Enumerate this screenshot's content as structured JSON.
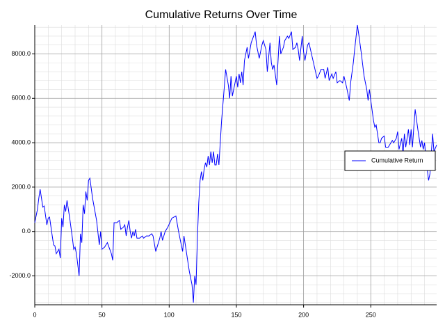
{
  "chart_data": {
    "type": "line",
    "title": "Cumulative Returns Over Time",
    "x": [
      0,
      2,
      3,
      4,
      6,
      7,
      9,
      10,
      11,
      13,
      14,
      15,
      16,
      18,
      19,
      20,
      21,
      22,
      23,
      24,
      26,
      28,
      29,
      30,
      31,
      33,
      34,
      35,
      36,
      37,
      38,
      39,
      40,
      41,
      43,
      46,
      48,
      49,
      50,
      52,
      54,
      57,
      58,
      59,
      61,
      63,
      64,
      66,
      67,
      68,
      69,
      70,
      71,
      72,
      73,
      74,
      75,
      76,
      78,
      80,
      81,
      83,
      85,
      87,
      88,
      90,
      92,
      93,
      94,
      95,
      96,
      97,
      99,
      102,
      105,
      107,
      109,
      110,
      111,
      113,
      115,
      117,
      118,
      119,
      120,
      121,
      122,
      123,
      124,
      125,
      126,
      127,
      128,
      129,
      130,
      131,
      132,
      133,
      134,
      135,
      136,
      137,
      139,
      141,
      142,
      144,
      145,
      146,
      147,
      149,
      150,
      151,
      152,
      153,
      154,
      155,
      156,
      158,
      159,
      161,
      164,
      165,
      167,
      169,
      170,
      172,
      173,
      175,
      176,
      177,
      178,
      180,
      182,
      183,
      185,
      186,
      188,
      189,
      191,
      192,
      194,
      195,
      196,
      197,
      199,
      200,
      201,
      203,
      204,
      207,
      210,
      211,
      213,
      215,
      216,
      218,
      219,
      221,
      222,
      224,
      225,
      227,
      229,
      230,
      232,
      234,
      235,
      237,
      238,
      240,
      241,
      243,
      245,
      247,
      248,
      249,
      250,
      252,
      253,
      254,
      256,
      257,
      258,
      260,
      261,
      263,
      264,
      266,
      267,
      269,
      270,
      271,
      273,
      274,
      275,
      276,
      278,
      279,
      280,
      281,
      282,
      283,
      285,
      287,
      288,
      289,
      290,
      291,
      293,
      294,
      296,
      297,
      299
    ],
    "series": [
      {
        "name": "Cumulative Return",
        "color": "#0000ff",
        "values": [
          400,
          1000,
          1500,
          1900,
          1100,
          1150,
          300,
          600,
          650,
          -200,
          -600,
          -650,
          -1000,
          -800,
          -1200,
          600,
          200,
          1200,
          900,
          1400,
          600,
          -300,
          -800,
          -700,
          -1000,
          -2000,
          -100,
          -500,
          1200,
          800,
          1800,
          1400,
          2300,
          2400,
          1500,
          500,
          -600,
          0,
          -800,
          -700,
          -500,
          -1000,
          -1300,
          400,
          400,
          500,
          100,
          200,
          300,
          -200,
          200,
          500,
          0,
          -300,
          0,
          -200,
          100,
          -300,
          -300,
          -200,
          -300,
          -200,
          -200,
          -100,
          -200,
          -900,
          -500,
          -300,
          0,
          -400,
          -200,
          0,
          200,
          600,
          700,
          0,
          -600,
          -900,
          -200,
          -1000,
          -1800,
          -2400,
          -3200,
          -2000,
          -2400,
          -300,
          1300,
          2300,
          2700,
          2300,
          2800,
          3100,
          2900,
          3400,
          3000,
          3600,
          3100,
          3600,
          3000,
          3000,
          3500,
          3000,
          5000,
          6500,
          7300,
          6600,
          6000,
          7000,
          6100,
          6700,
          7000,
          6500,
          7100,
          6700,
          7200,
          6600,
          7700,
          8300,
          7800,
          8500,
          9000,
          8400,
          7800,
          8400,
          8600,
          8200,
          7200,
          8500,
          7600,
          7300,
          7500,
          6600,
          8800,
          8000,
          8300,
          8600,
          8800,
          8700,
          9000,
          8200,
          8300,
          8500,
          8200,
          7700,
          8800,
          8100,
          7700,
          8400,
          8500,
          7700,
          6900,
          7000,
          7300,
          7300,
          6900,
          7400,
          6800,
          7100,
          6900,
          7200,
          6700,
          6800,
          6700,
          7000,
          6500,
          5900,
          6700,
          7600,
          8200,
          9300,
          8900,
          8000,
          7000,
          6400,
          5900,
          6400,
          5900,
          5000,
          4700,
          4800,
          4000,
          4000,
          4200,
          4300,
          3800,
          3800,
          3900,
          4100,
          4000,
          4200,
          4500,
          3700,
          4200,
          3500,
          4400,
          3800,
          4600,
          3900,
          4600,
          3800,
          4700,
          5500,
          4600,
          3800,
          4100,
          3700,
          4000,
          3300,
          2300,
          2600,
          4400,
          3600,
          3900
        ]
      }
    ],
    "xlim": [
      0,
      299
    ],
    "ylim": [
      -3300,
      9300
    ],
    "xticks": [
      0,
      50,
      100,
      150,
      200,
      250
    ],
    "yticks": [
      {
        "value": -2000,
        "label": "-2000.0"
      },
      {
        "value": 0,
        "label": "0.0"
      },
      {
        "value": 2000,
        "label": "2000.0"
      },
      {
        "value": 4000,
        "label": "4000.0"
      },
      {
        "value": 6000,
        "label": "6000.0"
      },
      {
        "value": 8000,
        "label": "8000.0"
      }
    ],
    "grid": true,
    "legend": "center right"
  }
}
